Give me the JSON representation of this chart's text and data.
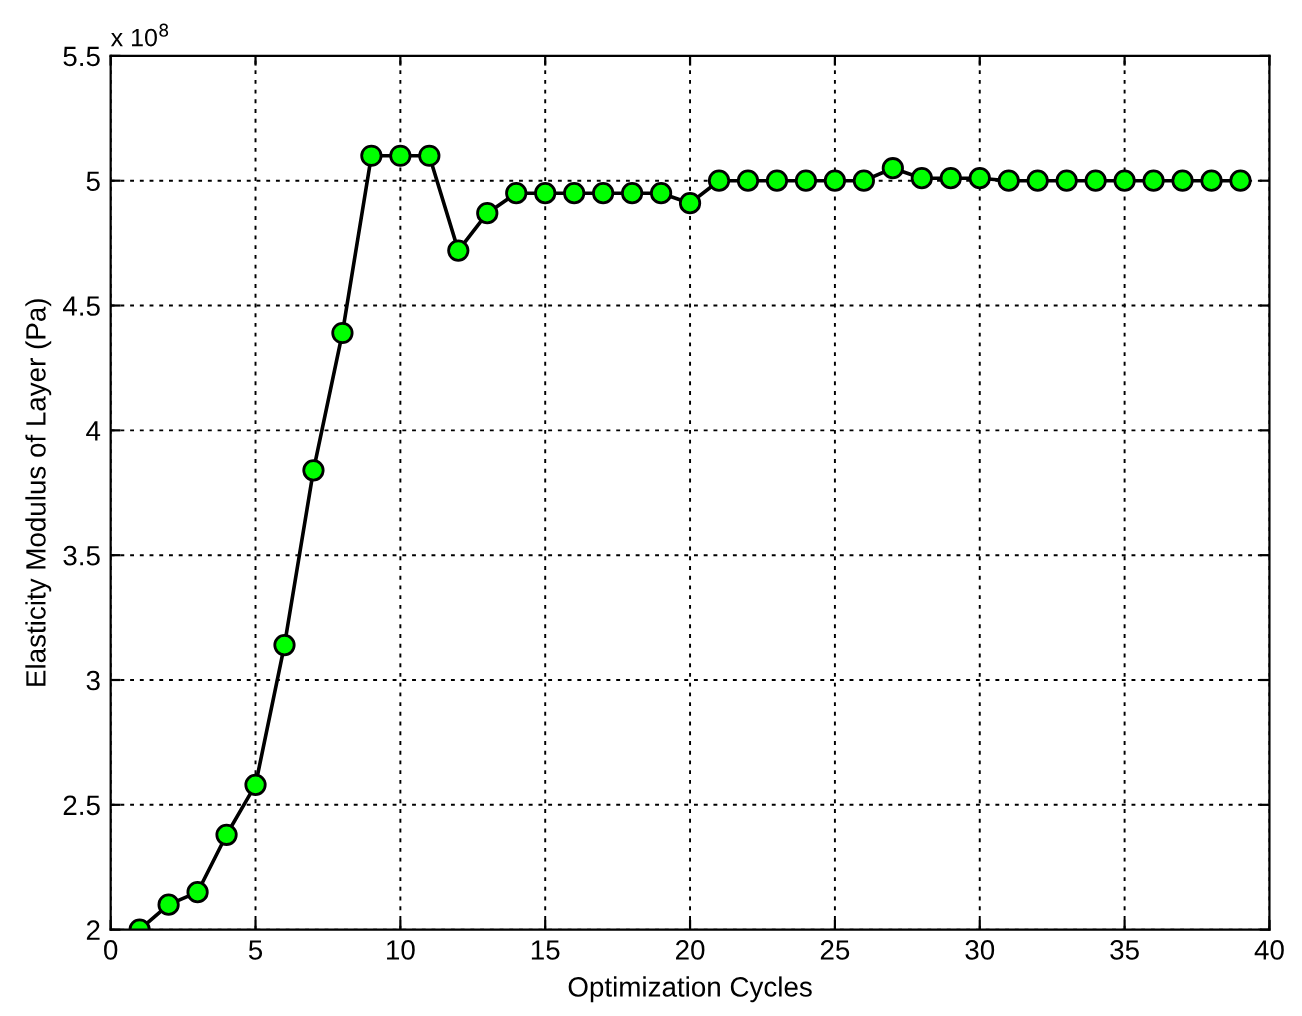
{
  "chart_data": {
    "type": "line",
    "xlabel": "Optimization Cycles",
    "ylabel": "Elasticity Modulus of Layer (Pa)",
    "annotations": [
      "x 10$^{8}$"
    ],
    "x": [
      1,
      2,
      3,
      4,
      5,
      6,
      7,
      8,
      9,
      10,
      11,
      12,
      13,
      14,
      15,
      16,
      17,
      18,
      19,
      20,
      21,
      22,
      23,
      24,
      25,
      26,
      27,
      28,
      29,
      30,
      31,
      32,
      33,
      34,
      35,
      36,
      37,
      38,
      39
    ],
    "series": [
      {
        "color": "#000000",
        "values": [
          2.0,
          2.1,
          2.15,
          2.38,
          2.58,
          3.14,
          3.84,
          4.39,
          5.1,
          5.1,
          5.1,
          4.72,
          4.87,
          4.95,
          4.95,
          4.95,
          4.95,
          4.95,
          4.95,
          4.91,
          5.0,
          5.0,
          5.0,
          5.0,
          5.0,
          5.0,
          5.05,
          5.01,
          5.01,
          5.01,
          5.0,
          5.0,
          5.0,
          5.0,
          5.0,
          5.0,
          5.0,
          5.0,
          5.0
        ]
      }
    ],
    "marker": "circle",
    "line_style": "solid",
    "grid": true,
    "xlim": [
      0,
      40
    ],
    "xticks": [
      0,
      5,
      10,
      15,
      20,
      25,
      30,
      35,
      40
    ],
    "ylim": [
      2,
      5.5
    ],
    "yticks": [
      2,
      2.5,
      3,
      3.5,
      4,
      4.5,
      5,
      5.5
    ]
  }
}
